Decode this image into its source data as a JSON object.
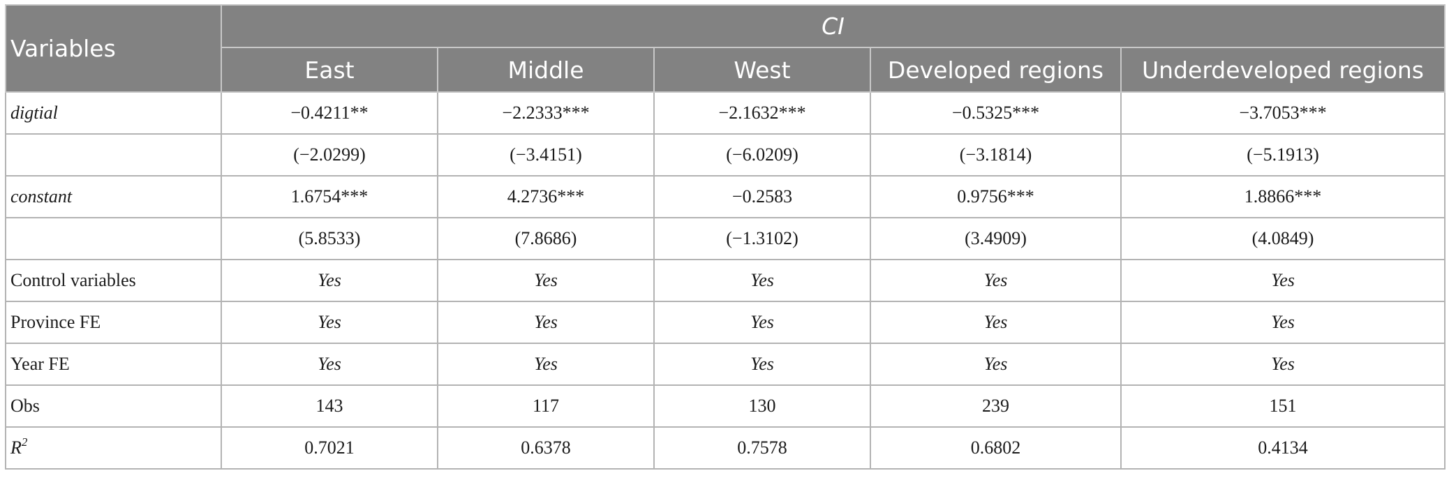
{
  "table": {
    "header": {
      "variables": "Variables",
      "group": "CI",
      "columns": [
        "East",
        "Middle",
        "West",
        "Developed regions",
        "Underdeveloped regions"
      ]
    },
    "rows": [
      {
        "label": "digtial",
        "label_italic": true,
        "values_italic": false,
        "values": [
          "−0.4211**",
          "−2.2333***",
          "−2.1632***",
          "−0.5325***",
          "−3.7053***"
        ]
      },
      {
        "label": "",
        "label_italic": false,
        "values_italic": false,
        "values": [
          "(−2.0299)",
          "(−3.4151)",
          "(−6.0209)",
          "(−3.1814)",
          "(−5.1913)"
        ]
      },
      {
        "label": "constant",
        "label_italic": true,
        "values_italic": false,
        "values": [
          "1.6754***",
          "4.2736***",
          "−0.2583",
          "0.9756***",
          "1.8866***"
        ]
      },
      {
        "label": "",
        "label_italic": false,
        "values_italic": false,
        "values": [
          "(5.8533)",
          "(7.8686)",
          "(−1.3102)",
          "(3.4909)",
          "(4.0849)"
        ]
      },
      {
        "label": "Control variables",
        "label_italic": false,
        "values_italic": true,
        "values": [
          "Yes",
          "Yes",
          "Yes",
          "Yes",
          "Yes"
        ]
      },
      {
        "label": "Province FE",
        "label_italic": false,
        "values_italic": true,
        "values": [
          "Yes",
          "Yes",
          "Yes",
          "Yes",
          "Yes"
        ]
      },
      {
        "label": "Year FE",
        "label_italic": false,
        "values_italic": true,
        "values": [
          "Yes",
          "Yes",
          "Yes",
          "Yes",
          "Yes"
        ]
      },
      {
        "label": "Obs",
        "label_italic": false,
        "values_italic": false,
        "values": [
          "143",
          "117",
          "130",
          "239",
          "151"
        ]
      }
    ],
    "r2_row": {
      "label_base": "R",
      "label_sup": "2",
      "values": [
        "0.7021",
        "0.6378",
        "0.7578",
        "0.6802",
        "0.4134"
      ]
    }
  }
}
